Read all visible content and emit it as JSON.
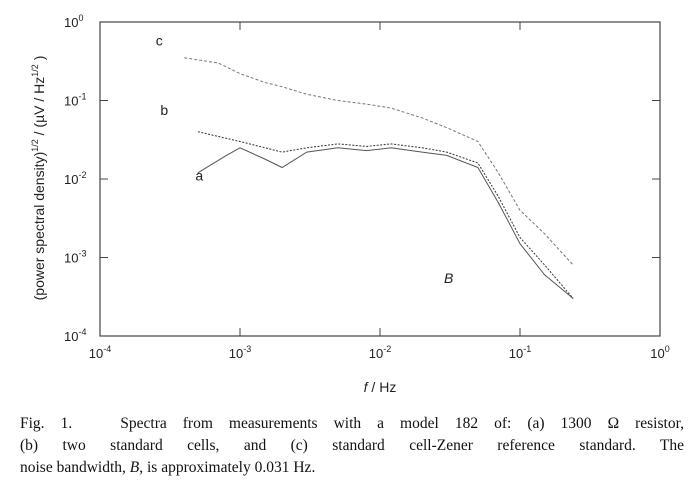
{
  "chart_data": {
    "type": "line",
    "scale": "log-log",
    "xlabel_italic": "f",
    "xlabel_unit": " / Hz",
    "ylabel_main": "(power spectral density)",
    "ylabel_sup1": "1/2",
    "ylabel_mid": " / (",
    "ylabel_mu": "µ",
    "ylabel_unit": "V / Hz",
    "ylabel_sup2": "1/2",
    "ylabel_end": " )",
    "xlim": [
      0.0001,
      1
    ],
    "ylim": [
      0.0001,
      1
    ],
    "x_ticks": [
      {
        "base": "10",
        "exp": "-4",
        "value": 0.0001
      },
      {
        "base": "10",
        "exp": "-3",
        "value": 0.001
      },
      {
        "base": "10",
        "exp": "-2",
        "value": 0.01
      },
      {
        "base": "10",
        "exp": "-1",
        "value": 0.1
      },
      {
        "base": "10",
        "exp": "0",
        "value": 1
      }
    ],
    "y_ticks": [
      {
        "base": "10",
        "exp": "0",
        "value": 1
      },
      {
        "base": "10",
        "exp": "-1",
        "value": 0.1
      },
      {
        "base": "10",
        "exp": "-2",
        "value": 0.01
      },
      {
        "base": "10",
        "exp": "-3",
        "value": 0.001
      },
      {
        "base": "10",
        "exp": "-4",
        "value": 0.0001
      }
    ],
    "annotation": "B",
    "series": [
      {
        "name": "a",
        "label": "a",
        "label_at": [
          0.00048,
          0.0095
        ],
        "x": [
          0.0005,
          0.0008,
          0.001,
          0.0015,
          0.002,
          0.003,
          0.005,
          0.008,
          0.012,
          0.02,
          0.03,
          0.05,
          0.07,
          0.1,
          0.15,
          0.24
        ],
        "y": [
          0.012,
          0.02,
          0.025,
          0.018,
          0.014,
          0.022,
          0.025,
          0.023,
          0.025,
          0.022,
          0.02,
          0.014,
          0.005,
          0.0015,
          0.0006,
          0.0003
        ]
      },
      {
        "name": "b",
        "label": "b",
        "label_at": [
          0.00027,
          0.065
        ],
        "x": [
          0.0005,
          0.001,
          0.002,
          0.003,
          0.005,
          0.008,
          0.012,
          0.02,
          0.03,
          0.05,
          0.07,
          0.1,
          0.15,
          0.24
        ],
        "y": [
          0.04,
          0.03,
          0.022,
          0.025,
          0.028,
          0.026,
          0.028,
          0.025,
          0.022,
          0.016,
          0.006,
          0.0018,
          0.0008,
          0.0003
        ]
      },
      {
        "name": "c",
        "label": "c",
        "label_at": [
          0.00025,
          0.5
        ],
        "x": [
          0.0004,
          0.0007,
          0.001,
          0.0015,
          0.002,
          0.003,
          0.005,
          0.008,
          0.012,
          0.02,
          0.03,
          0.05,
          0.07,
          0.1,
          0.15,
          0.24
        ],
        "y": [
          0.35,
          0.3,
          0.22,
          0.17,
          0.15,
          0.12,
          0.1,
          0.09,
          0.08,
          0.06,
          0.045,
          0.03,
          0.012,
          0.004,
          0.002,
          0.0008
        ]
      }
    ]
  },
  "caption": {
    "fig_label": "Fig. 1.",
    "line1_a": "Spectra from measurements with a model 182 of: (a) 1300 ",
    "ohm": "Ω",
    "line1_b": " resistor,",
    "line2": "(b) two standard cells, and (c) standard cell-Zener reference standard. The",
    "line3_a": "noise bandwidth, ",
    "line3_b_italic": "B",
    "line3_c": ", is approximately 0.031 Hz."
  }
}
